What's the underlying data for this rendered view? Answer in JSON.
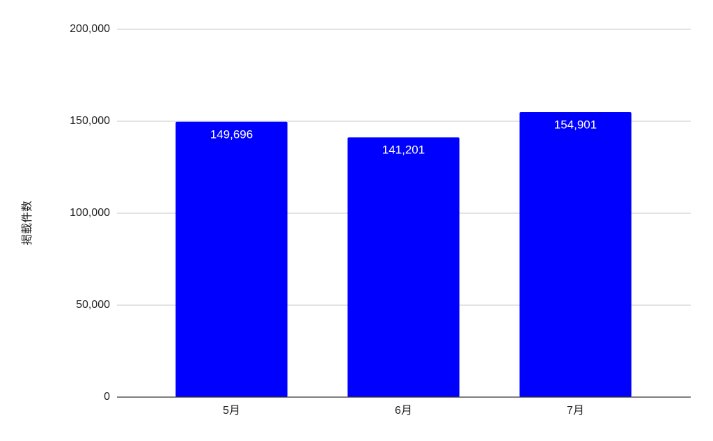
{
  "chart_data": {
    "type": "bar",
    "y_label": "掲載件数",
    "categories": [
      "5月",
      "6月",
      "7月"
    ],
    "values": [
      149696,
      141201,
      154901
    ],
    "value_labels": [
      "149,696",
      "141,201",
      "154,901"
    ],
    "color": "#0000ff",
    "ylim": [
      0,
      200000
    ],
    "yticks": [
      0,
      {
        "value": 50000,
        "label": "50,000"
      },
      {
        "value": 100000,
        "label": "100,000"
      },
      {
        "value": 150000,
        "label": "150,000"
      },
      {
        "value": 200000,
        "label": "200,000"
      }
    ],
    "grid": true
  }
}
